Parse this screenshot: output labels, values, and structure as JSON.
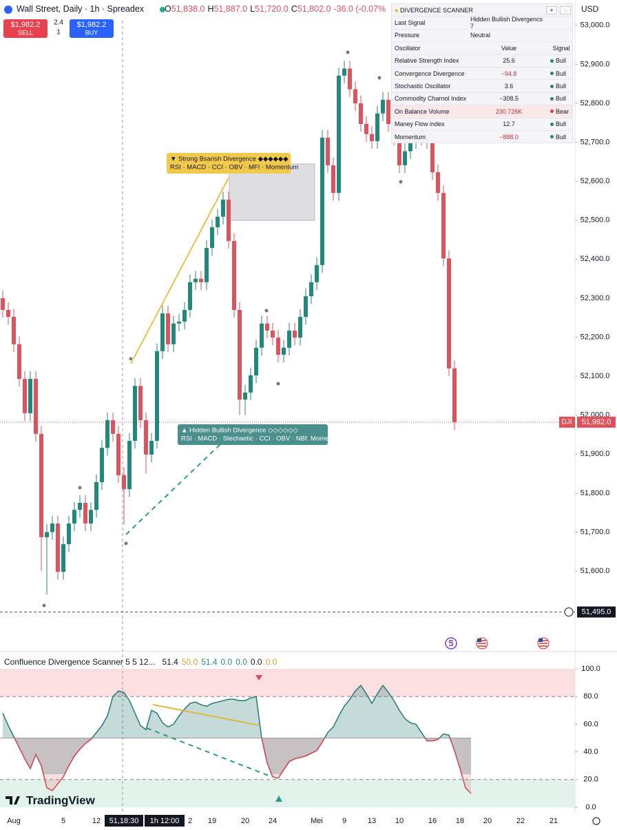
{
  "header": {
    "symbol": "Wall Street, Daily · 1h · Spreadex",
    "ohlc": [
      {
        "label": "O",
        "value": "51,838.0"
      },
      {
        "label": "H",
        "value": "51,887.0"
      },
      {
        "label": "L",
        "value": "51,720.0"
      },
      {
        "label": "C",
        "value": "51,802.0"
      }
    ],
    "change": "-36.0 (-0.07%",
    "currency": "USD"
  },
  "trade": {
    "sell_price": "$1,982.2",
    "sell": "SELL",
    "spread": "2.4",
    "quantity": "1",
    "buy_price": "$1,982.2",
    "buy": "BUY"
  },
  "scanner": {
    "title": "DIVERGENCE SCANNER",
    "last_signal": {
      "label": "Last Signal",
      "value": "Hidden Bullish Divergencs 7"
    },
    "pressure": {
      "label": "Pressure",
      "value": "Neutral"
    },
    "columns": [
      "Oscillator",
      "Value",
      "Signal"
    ],
    "rows": [
      {
        "name": "Relative Strength Index",
        "value": "25.6",
        "value_color": "#131722",
        "signal": "Bull",
        "signal_color": "#1e8a6a"
      },
      {
        "name": "Convergence Divergence",
        "value": "−94.8",
        "value_color": "#c0303c",
        "signal": "Bull",
        "signal_color": "#1e8a6a"
      },
      {
        "name": "Stochastic Oscillator",
        "value": "3.6",
        "value_color": "#131722",
        "signal": "Bull",
        "signal_color": "#1e8a6a"
      },
      {
        "name": "Commodity Charnol Index",
        "value": "−308.5",
        "value_color": "#131722",
        "signal": "Bull",
        "signal_color": "#1e8a6a"
      },
      {
        "name": "On Balance Volume",
        "value": "230.726K",
        "value_color": "#c0303c",
        "signal": "Bear",
        "signal_color": "#e03a48"
      },
      {
        "name": "Maney Flow index",
        "value": "12.7",
        "value_color": "#131722",
        "signal": "Bull",
        "signal_color": "#1e8a6a"
      },
      {
        "name": "Momentum",
        "value": "−888.0",
        "value_color": "#c0303c",
        "signal": "Bull",
        "signal_color": "#1e8a6a"
      }
    ]
  },
  "logo": "TradingView",
  "crosshair_labels": [
    "51,18:30",
    "1h 12:00"
  ],
  "chart_data": [
    {
      "type": "candlestick",
      "up_color": "#1f8a7b",
      "down_color": "#e0515e",
      "categories": [
        null,
        null,
        "Aug",
        null,
        null,
        null,
        null,
        null,
        null,
        null,
        null,
        "5",
        null,
        null,
        null,
        null,
        null,
        "12",
        null,
        null,
        null,
        null,
        null,
        null,
        null,
        null,
        null,
        null,
        null,
        null,
        null,
        null,
        null,
        null,
        "2",
        null,
        null,
        null,
        "19",
        null,
        null,
        null,
        null,
        null,
        "20",
        null,
        null,
        null,
        null,
        "24",
        null,
        null,
        null,
        null,
        null,
        null,
        null,
        "Mei",
        null,
        null,
        null,
        null,
        "9",
        null,
        null,
        null,
        null,
        "13",
        null,
        null,
        null,
        null,
        "10",
        null,
        null,
        null,
        null,
        null,
        "16",
        null,
        null,
        null,
        null,
        "18",
        null,
        null,
        null,
        null,
        "20",
        null,
        null,
        null,
        null,
        null,
        "22",
        null,
        null,
        null,
        null,
        null,
        "21",
        null,
        null,
        null
      ],
      "o": [
        52300,
        52270,
        52252,
        52182,
        52093,
        52005,
        52093,
        51952,
        51687,
        51700,
        51722,
        51598,
        51669,
        51722,
        51757,
        51775,
        51722,
        51757,
        51828,
        51916,
        51987,
        51952,
        51846,
        51810,
        51934,
        52075,
        51987,
        51899,
        51934,
        52164,
        52261,
        52182,
        52235,
        52240,
        52270,
        52341,
        52350,
        52341,
        52429,
        52482,
        52509,
        52553,
        52447,
        52270,
        52040,
        52058,
        52102,
        52173,
        52235,
        52217,
        52199,
        52155,
        52173,
        52217,
        52199,
        52252,
        52305,
        52341,
        52385,
        52712,
        52641,
        52570,
        52871,
        52889,
        52836,
        52800,
        52747,
        52721,
        52703,
        52774,
        52809,
        52747,
        52712,
        52641,
        52677,
        52703,
        52730,
        52712,
        52703,
        52623,
        52570,
        52402,
        52120,
        null,
        null,
        null,
        null,
        null,
        null,
        null,
        null,
        null,
        null,
        null,
        null,
        null,
        null,
        null,
        null,
        null,
        null,
        null,
        null,
        null
      ],
      "h": [
        52320,
        52290,
        52272,
        52202,
        52113,
        52113,
        52113,
        51972,
        51720,
        51742,
        51742,
        51689,
        51742,
        51777,
        51795,
        51795,
        51777,
        51848,
        51936,
        52007,
        52007,
        51972,
        51866,
        51954,
        52095,
        52095,
        52007,
        51954,
        52184,
        52281,
        52281,
        52255,
        52260,
        52290,
        52361,
        52370,
        52370,
        52449,
        52502,
        52529,
        52573,
        52573,
        52467,
        52290,
        52078,
        52122,
        52193,
        52255,
        52255,
        52237,
        52219,
        52193,
        52237,
        52237,
        52272,
        52325,
        52361,
        52405,
        52732,
        52732,
        52661,
        52891,
        52909,
        52909,
        52856,
        52820,
        52767,
        52741,
        52794,
        52829,
        52829,
        52767,
        52732,
        52697,
        52723,
        52750,
        52750,
        52732,
        52723,
        52643,
        52590,
        52422,
        52140,
        null,
        null,
        null,
        null,
        null,
        null,
        null,
        null,
        null,
        null,
        null,
        null,
        null,
        null,
        null,
        null,
        null,
        null,
        null,
        null,
        null
      ],
      "l": [
        52250,
        52232,
        52162,
        52073,
        51985,
        51985,
        51932,
        51600,
        51540,
        51680,
        51578,
        51578,
        51649,
        51702,
        51737,
        51702,
        51702,
        51737,
        51808,
        51896,
        51932,
        51826,
        51720,
        51790,
        51914,
        51967,
        51850,
        51879,
        51914,
        52144,
        52162,
        52162,
        52215,
        52220,
        52250,
        52321,
        52321,
        52321,
        52409,
        52462,
        52489,
        52427,
        52250,
        52000,
        52000,
        52038,
        52082,
        52153,
        52197,
        52179,
        52135,
        52135,
        52153,
        52179,
        52179,
        52232,
        52285,
        52321,
        52365,
        52621,
        52550,
        52550,
        52851,
        52816,
        52780,
        52727,
        52701,
        52683,
        52683,
        52754,
        52727,
        52692,
        52621,
        52621,
        52657,
        52683,
        52692,
        52683,
        52603,
        52550,
        52382,
        52100,
        51962,
        null,
        null,
        null,
        null,
        null,
        null,
        null,
        null,
        null,
        null,
        null,
        null,
        null,
        null,
        null,
        null,
        null,
        null,
        null,
        null,
        null
      ],
      "c": [
        52270,
        52252,
        52182,
        52093,
        52005,
        52093,
        51952,
        51687,
        51700,
        51722,
        51598,
        51669,
        51722,
        51757,
        51775,
        51722,
        51757,
        51828,
        51916,
        51987,
        51952,
        51846,
        51810,
        51934,
        52075,
        51987,
        51899,
        51934,
        52164,
        52261,
        52182,
        52235,
        52240,
        52270,
        52341,
        52350,
        52341,
        52429,
        52482,
        52509,
        52553,
        52447,
        52270,
        52040,
        52058,
        52102,
        52173,
        52235,
        52217,
        52199,
        52155,
        52173,
        52217,
        52199,
        52252,
        52305,
        52341,
        52385,
        52712,
        52641,
        52570,
        52871,
        52889,
        52836,
        52800,
        52747,
        52721,
        52703,
        52774,
        52809,
        52747,
        52712,
        52641,
        52677,
        52703,
        52730,
        52712,
        52703,
        52623,
        52570,
        52402,
        52120,
        51982,
        null,
        null,
        null,
        null,
        null,
        null,
        null,
        null,
        null,
        null,
        null,
        null,
        null,
        null,
        null,
        null,
        null,
        null,
        null,
        null,
        null
      ],
      "ylim": [
        51404,
        53065
      ],
      "yticks": [
        {
          "value": 53000,
          "label": "53,000.0"
        },
        {
          "value": 52900,
          "label": "52,900.0"
        },
        {
          "value": 52800,
          "label": "52,800.0"
        },
        {
          "value": 52700,
          "label": "52,700.0"
        },
        {
          "value": 52600,
          "label": "52,600.0"
        },
        {
          "value": 52500,
          "label": "52,500.0"
        },
        {
          "value": 52400,
          "label": "52,400.0"
        },
        {
          "value": 52300,
          "label": "52,300.0"
        },
        {
          "value": 52200,
          "label": "52,200.0"
        },
        {
          "value": 52100,
          "label": "52,100.0"
        },
        {
          "value": 52000,
          "label": "52,000.0"
        },
        {
          "value": 51900,
          "label": "51,900.0"
        },
        {
          "value": 51800,
          "label": "51,800.0"
        },
        {
          "value": 51700,
          "label": "51,700.0"
        },
        {
          "value": 51600,
          "label": "51,600.0"
        }
      ],
      "last_price": {
        "symbol": "DJI",
        "value": 51982,
        "label": "51,982.0"
      },
      "low_marker": {
        "value": 51495,
        "label": "51,495.0"
      },
      "annotations": [
        {
          "title": "▼ Strong Bsarish Divergence ◆◆◆◆◆◆",
          "subtitle": "RSI · MACD · CCI · OBV · MFI · Momentum"
        },
        {
          "title": "▲ Hidden Bullish Divergence ◇◇◇◇◇◇",
          "subtitle": "RSI · MACD · Stechaetic · CCI · OBV · NBf. Momentum"
        }
      ]
    },
    {
      "type": "line",
      "title": "Confluence Divergence Scanner 5 5 12...",
      "readouts": [
        {
          "text": "51.4",
          "color": "#131722"
        },
        {
          "text": "50.0",
          "color": "#d4a72c"
        },
        {
          "text": "51.4",
          "color": "#2a8a82"
        },
        {
          "text": "0.0",
          "color": "#2a8a82"
        },
        {
          "text": "0.0",
          "color": "#2a8a82"
        },
        {
          "text": "0.0",
          "color": "#131722"
        },
        {
          "text": "0.0",
          "color": "#d4a72c"
        }
      ],
      "series": [
        {
          "name": "Confluence",
          "color": "#2f7f7a",
          "values": [
            68,
            59,
            51,
            43,
            35,
            28,
            38,
            30,
            14,
            12,
            17,
            22,
            30,
            37,
            42,
            46,
            49,
            54,
            59,
            66,
            80,
            84,
            83,
            77,
            68,
            59,
            56,
            70,
            68,
            61,
            58,
            60,
            66,
            71,
            75,
            76,
            74,
            73,
            75,
            76,
            77,
            78,
            78,
            77,
            77,
            79,
            80,
            50,
            32,
            22,
            21,
            27,
            33,
            35,
            36,
            37,
            39,
            41,
            47,
            54,
            58,
            66,
            73,
            78,
            84,
            88,
            82,
            75,
            82,
            88,
            83,
            77,
            70,
            64,
            61,
            60,
            54,
            48,
            48,
            49,
            53,
            52,
            41,
            28,
            14,
            10,
            null,
            null,
            null,
            null,
            null,
            null,
            null,
            null,
            null,
            null,
            null,
            null,
            null,
            null,
            null,
            null,
            null,
            null
          ]
        }
      ],
      "below_color": "#d9505e",
      "overbought": 80,
      "oversold": 20,
      "midline": 50,
      "ylim": [
        0,
        100
      ],
      "yticks": [
        {
          "value": 100,
          "label": "100.0"
        },
        {
          "value": 80,
          "label": "80.0"
        },
        {
          "value": 60,
          "label": "60.0"
        },
        {
          "value": 40,
          "label": "40.0"
        },
        {
          "value": 20,
          "label": "20.0"
        },
        {
          "value": 0,
          "label": "0.0"
        }
      ]
    }
  ]
}
